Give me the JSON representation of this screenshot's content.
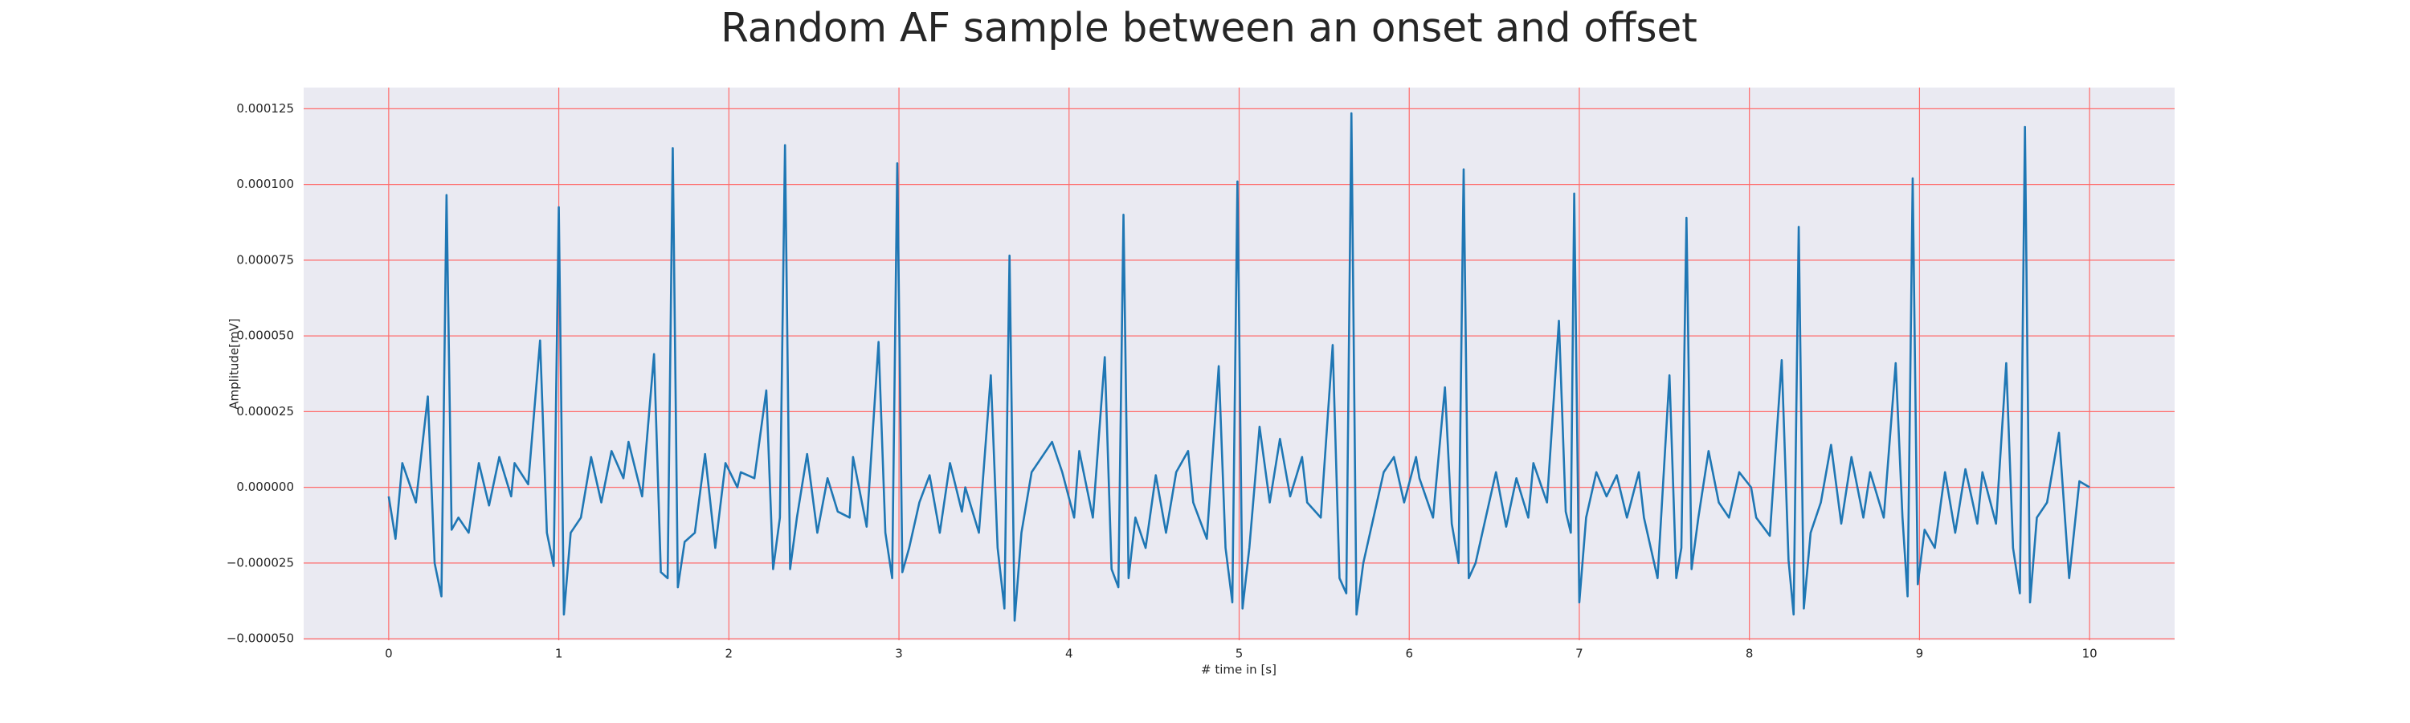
{
  "chart_data": {
    "type": "line",
    "title": "Random AF sample between an onset and offset",
    "x_label": "# time in [s]",
    "y_label": "Amplitude[mV]",
    "xlim": [
      -0.5,
      10.5
    ],
    "ylim": [
      -5.05e-05,
      0.000132
    ],
    "xticks": [
      0,
      1,
      2,
      3,
      4,
      5,
      6,
      7,
      8,
      9,
      10
    ],
    "yticks": [
      {
        "value": -5e-05,
        "label": "−0.000050"
      },
      {
        "value": -2.5e-05,
        "label": "−0.000025"
      },
      {
        "value": 0,
        "label": "0.000000"
      },
      {
        "value": 2.5e-05,
        "label": "0.000025"
      },
      {
        "value": 5e-05,
        "label": "0.000050"
      },
      {
        "value": 7.5e-05,
        "label": "0.000075"
      },
      {
        "value": 0.0001,
        "label": "0.000100"
      },
      {
        "value": 0.000125,
        "label": "0.000125"
      }
    ],
    "grid": true,
    "grid_color": "#ff6b6b",
    "background": "#eaeaf2",
    "x": [
      0,
      0.04,
      0.08,
      0.16,
      0.23,
      0.27,
      0.31,
      0.34,
      0.37,
      0.41,
      0.47,
      0.53,
      0.59,
      0.65,
      0.72,
      0.74,
      0.82,
      0.89,
      0.93,
      0.97,
      1.0,
      1.03,
      1.07,
      1.13,
      1.19,
      1.25,
      1.31,
      1.38,
      1.41,
      1.49,
      1.56,
      1.6,
      1.64,
      1.67,
      1.7,
      1.74,
      1.8,
      1.86,
      1.92,
      1.98,
      2.05,
      2.07,
      2.15,
      2.22,
      2.26,
      2.3,
      2.33,
      2.36,
      2.4,
      2.46,
      2.52,
      2.58,
      2.64,
      2.71,
      2.73,
      2.81,
      2.88,
      2.92,
      2.96,
      2.99,
      3.02,
      3.06,
      3.12,
      3.18,
      3.24,
      3.3,
      3.37,
      3.39,
      3.47,
      3.54,
      3.58,
      3.62,
      3.65,
      3.68,
      3.72,
      3.78,
      3.84,
      3.9,
      3.96,
      4.03,
      4.06,
      4.14,
      4.21,
      4.25,
      4.29,
      4.32,
      4.35,
      4.39,
      4.45,
      4.51,
      4.57,
      4.63,
      4.7,
      4.73,
      4.81,
      4.88,
      4.92,
      4.96,
      4.99,
      5.02,
      5.06,
      5.12,
      5.18,
      5.24,
      5.3,
      5.37,
      5.4,
      5.48,
      5.55,
      5.59,
      5.63,
      5.66,
      5.69,
      5.73,
      5.79,
      5.85,
      5.91,
      5.97,
      6.04,
      6.06,
      6.14,
      6.21,
      6.25,
      6.29,
      6.32,
      6.35,
      6.39,
      6.45,
      6.51,
      6.57,
      6.63,
      6.7,
      6.73,
      6.81,
      6.88,
      6.92,
      6.95,
      6.97,
      7.0,
      7.04,
      7.1,
      7.16,
      7.22,
      7.28,
      7.35,
      7.38,
      7.46,
      7.53,
      7.57,
      7.6,
      7.63,
      7.66,
      7.7,
      7.76,
      7.82,
      7.88,
      7.94,
      8.01,
      8.04,
      8.12,
      8.19,
      8.23,
      8.26,
      8.29,
      8.32,
      8.36,
      8.42,
      8.48,
      8.54,
      8.6,
      8.67,
      8.71,
      8.79,
      8.86,
      8.9,
      8.93,
      8.96,
      8.99,
      9.03,
      9.09,
      9.15,
      9.21,
      9.27,
      9.34,
      9.37,
      9.45,
      9.51,
      9.55,
      9.59,
      9.62,
      9.65,
      9.69,
      9.75,
      9.82,
      9.88,
      9.94,
      10.0
    ],
    "series": [
      {
        "name": "Amplitude",
        "color": "#1f77b4",
        "values": [
          -3e-06,
          -1.7e-05,
          8e-06,
          -5e-06,
          3e-05,
          -2.5e-05,
          -3.6e-05,
          9.65e-05,
          -1.4e-05,
          -1e-05,
          -1.5e-05,
          8e-06,
          -6e-06,
          1e-05,
          -3e-06,
          8e-06,
          1e-06,
          4.85e-05,
          -1.5e-05,
          -2.6e-05,
          9.25e-05,
          -4.2e-05,
          -1.5e-05,
          -1e-05,
          1e-05,
          -5e-06,
          1.2e-05,
          3e-06,
          1.5e-05,
          -3e-06,
          4.4e-05,
          -2.8e-05,
          -3e-05,
          0.000112,
          -3.3e-05,
          -1.8e-05,
          -1.5e-05,
          1.1e-05,
          -2e-05,
          8e-06,
          0,
          5e-06,
          3e-06,
          3.2e-05,
          -2.7e-05,
          -1e-05,
          0.000113,
          -2.7e-05,
          -1e-05,
          1.1e-05,
          -1.5e-05,
          3e-06,
          -8e-06,
          -1e-05,
          1e-05,
          -1.3e-05,
          4.8e-05,
          -1.5e-05,
          -3e-05,
          0.000107,
          -2.8e-05,
          -2e-05,
          -5e-06,
          4e-06,
          -1.5e-05,
          8e-06,
          -8e-06,
          0,
          -1.5e-05,
          3.7e-05,
          -2e-05,
          -4e-05,
          7.65e-05,
          -4.4e-05,
          -1.5e-05,
          5e-06,
          1e-05,
          1.5e-05,
          5e-06,
          -1e-05,
          1.2e-05,
          -1e-05,
          4.3e-05,
          -2.7e-05,
          -3.3e-05,
          9e-05,
          -3e-05,
          -1e-05,
          -2e-05,
          4e-06,
          -1.5e-05,
          5e-06,
          1.2e-05,
          -5e-06,
          -1.7e-05,
          4e-05,
          -2e-05,
          -3.8e-05,
          0.000101,
          -4e-05,
          -2e-05,
          2e-05,
          -5e-06,
          1.6e-05,
          -3e-06,
          1e-05,
          -5e-06,
          -1e-05,
          4.7e-05,
          -3e-05,
          -3.5e-05,
          0.0001235,
          -4.2e-05,
          -2.5e-05,
          -1e-05,
          5e-06,
          1e-05,
          -5e-06,
          1e-05,
          3e-06,
          -1e-05,
          3.3e-05,
          -1.2e-05,
          -2.5e-05,
          0.000105,
          -3e-05,
          -2.5e-05,
          -1e-05,
          5e-06,
          -1.3e-05,
          3e-06,
          -1e-05,
          8e-06,
          -5e-06,
          5.5e-05,
          -8e-06,
          -1.5e-05,
          9.7e-05,
          -3.8e-05,
          -1e-05,
          5e-06,
          -3e-06,
          4e-06,
          -1e-05,
          5e-06,
          -1e-05,
          -3e-05,
          3.7e-05,
          -3e-05,
          -2e-05,
          8.9e-05,
          -2.7e-05,
          -1e-05,
          1.2e-05,
          -5e-06,
          -1e-05,
          5e-06,
          0,
          -1e-05,
          -1.6e-05,
          4.2e-05,
          -2.4e-05,
          -4.2e-05,
          8.6e-05,
          -4e-05,
          -1.5e-05,
          -5e-06,
          1.4e-05,
          -1.2e-05,
          1e-05,
          -1e-05,
          5e-06,
          -1e-05,
          4.1e-05,
          -1e-05,
          -3.6e-05,
          0.000102,
          -3.2e-05,
          -1.4e-05,
          -2e-05,
          5e-06,
          -1.5e-05,
          6e-06,
          -1.2e-05,
          5e-06,
          -1.2e-05,
          4.1e-05,
          -2e-05,
          -3.5e-05,
          0.000119,
          -3.8e-05,
          -1e-05,
          -5e-06,
          1.8e-05,
          -3e-05,
          2e-06,
          0
        ]
      }
    ]
  }
}
